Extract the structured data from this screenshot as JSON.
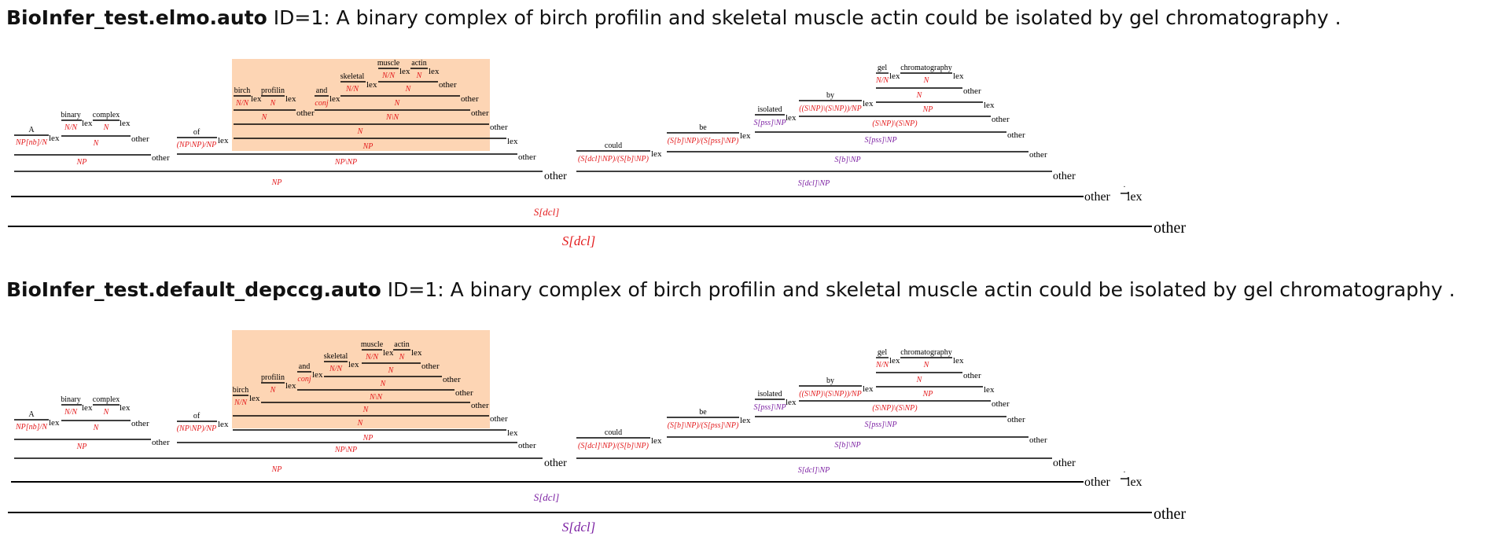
{
  "derivations": [
    {
      "title_name": "BioInfer_test.elmo.auto",
      "title_rest": " ID=1: A binary complex of birch profilin and skeletal muscle actin could be isolated by gel chromatography .",
      "words": {
        "a": "A",
        "binary": "binary",
        "complex": "complex",
        "of": "of",
        "birch": "birch",
        "profilin": "profilin",
        "and": "and",
        "skeletal": "skeletal",
        "muscle": "muscle",
        "actin": "actin",
        "could": "could",
        "be": "be",
        "isolated": "isolated",
        "by": "by",
        "gel": "gel",
        "chromatography": "chromatography",
        "period": "."
      },
      "cats": {
        "a": "NP[nb]/N",
        "binary": "N/N",
        "complex": "N",
        "binary_complex": "N",
        "a_np": "NP",
        "of": "(NP\\NP)/NP",
        "birch": "N/N",
        "profilin": "N",
        "birch_profilin": "N",
        "and": "conj",
        "skeletal": "N/N",
        "muscle": "N/N",
        "actin": "N",
        "muscle_actin": "N",
        "skeletal_muscle_actin": "N",
        "and_sma": "N\\N",
        "conj_n": "N",
        "conj_np": "NP",
        "of_pp": "NP\\NP",
        "big_np": "NP",
        "could": "(S[dcl]\\NP)/(S[b]\\NP)",
        "be": "(S[b]\\NP)/(S[pss]\\NP)",
        "isolated": "S[pss]\\NP",
        "by": "((S\\NP)\\(S\\NP))/NP",
        "gel": "N/N",
        "chromatography": "N",
        "gel_chrom": "N",
        "gel_np": "NP",
        "by_pp": "(S\\NP)\\(S\\NP)",
        "isolated_by": "S[pss]\\NP",
        "be_vp": "S[b]\\NP",
        "could_vp": "S[dcl]\\NP",
        "s_dcl": "S[dcl]",
        "s_top": "S[dcl]"
      },
      "rules": {
        "lex": "lex",
        "other": "other"
      }
    },
    {
      "title_name": "BioInfer_test.default_depccg.auto",
      "title_rest": " ID=1: A binary complex of birch profilin and skeletal muscle actin could be isolated by gel chromatography .",
      "words": {
        "a": "A",
        "binary": "binary",
        "complex": "complex",
        "of": "of",
        "birch": "birch",
        "profilin": "profilin",
        "and": "and",
        "skeletal": "skeletal",
        "muscle": "muscle",
        "actin": "actin",
        "could": "could",
        "be": "be",
        "isolated": "isolated",
        "by": "by",
        "gel": "gel",
        "chromatography": "chromatography",
        "period": "."
      },
      "cats": {
        "a": "NP[nb]/N",
        "binary": "N/N",
        "complex": "N",
        "binary_complex": "N",
        "a_np": "NP",
        "of": "(NP\\NP)/NP",
        "birch": "N/N",
        "profilin": "N",
        "and": "conj",
        "skeletal": "N/N",
        "muscle": "N/N",
        "actin": "N",
        "muscle_actin": "N",
        "skeletal_muscle_actin": "N",
        "conj_n": "N\\N",
        "profilin_conj": "N",
        "birch_all": "N",
        "conj_np": "NP",
        "of_pp": "NP\\NP",
        "big_np": "NP",
        "could": "(S[dcl]\\NP)/(S[b]\\NP)",
        "be": "(S[b]\\NP)/(S[pss]\\NP)",
        "isolated": "S[pss]\\NP",
        "by": "((S\\NP)\\(S\\NP))/NP",
        "gel": "N/N",
        "chromatography": "N",
        "gel_chrom": "N",
        "gel_np": "NP",
        "by_pp": "(S\\NP)\\(S\\NP)",
        "isolated_by": "S[pss]\\NP",
        "be_vp": "S[b]\\NP",
        "could_vp": "S[dcl]\\NP",
        "s_dcl": "S[dcl]",
        "s_top": "S[dcl]"
      },
      "rules": {
        "lex": "lex",
        "other": "other"
      }
    }
  ],
  "colors": {
    "highlight": "#fdd5b4",
    "category_red": "#e31a1c",
    "category_purple": "#7b1fa2"
  }
}
